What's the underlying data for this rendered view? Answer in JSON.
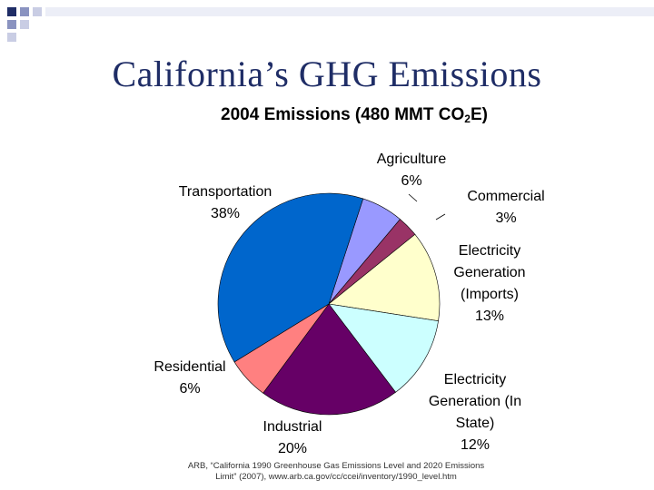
{
  "slide": {
    "title": "California’s GHG Emissions",
    "source_note_line1": "ARB, “California 1990 Greenhouse Gas Emissions Level and 2020 Emissions",
    "source_note_line2": "Limit” (2007), www.arb.ca.gov/cc/ccei/inventory/1990_level.htm",
    "title_color": "#1f2d66",
    "decor_colors": [
      "#1f2d66",
      "#8a93c0",
      "#c9cde4"
    ]
  },
  "chart_data": {
    "type": "pie",
    "title_main": "2004 Emissions (480 MMT CO",
    "title_sub": "2",
    "title_end": "E)",
    "unit": "%",
    "slices": [
      {
        "name": "Agriculture",
        "value": 6,
        "color": "#9999ff",
        "label_lines": [
          "Agriculture",
          "6%"
        ]
      },
      {
        "name": "Commercial",
        "value": 3,
        "color": "#993366",
        "label_lines": [
          "Commercial",
          "3%"
        ]
      },
      {
        "name": "Electricity Generation (Imports)",
        "value": 13,
        "color": "#ffffcc",
        "label_lines": [
          "Electricity",
          "Generation",
          "(Imports)",
          "13%"
        ]
      },
      {
        "name": "Electricity Generation (In State)",
        "value": 12,
        "color": "#ccffff",
        "label_lines": [
          "Electricity",
          "Generation (In",
          "State)",
          "12%"
        ]
      },
      {
        "name": "Industrial",
        "value": 20,
        "color": "#660066",
        "label_lines": [
          "Industrial",
          "20%"
        ]
      },
      {
        "name": "Residential",
        "value": 6,
        "color": "#ff8080",
        "label_lines": [
          "Residential",
          "6%"
        ]
      },
      {
        "name": "Transportation",
        "value": 38,
        "color": "#0066cc",
        "label_lines": [
          "Transportation",
          "38%"
        ]
      }
    ]
  }
}
